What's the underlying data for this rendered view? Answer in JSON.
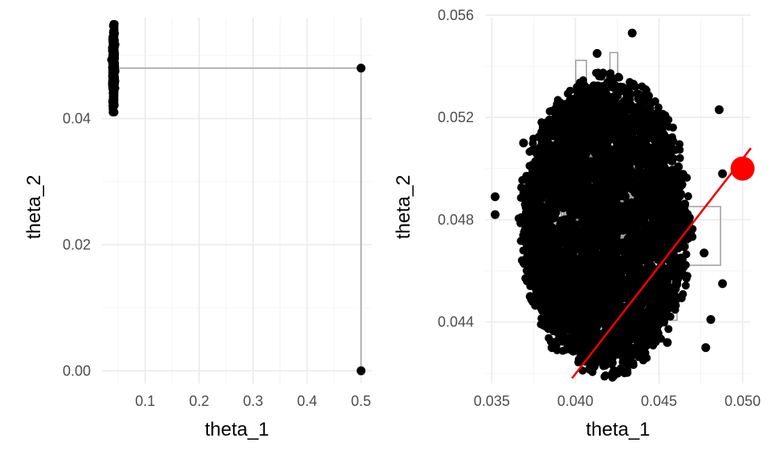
{
  "chart_data": [
    {
      "type": "scatter",
      "panel": "left",
      "xlabel": "theta_1",
      "ylabel": "theta_2",
      "xlim": [
        0.02,
        0.52
      ],
      "ylim": [
        -0.002,
        0.056
      ],
      "x_ticks": [
        0.1,
        0.2,
        0.3,
        0.4,
        0.5
      ],
      "x_tick_labels": [
        "0.1",
        "0.2",
        "0.3",
        "0.4",
        "0.5"
      ],
      "y_ticks": [
        0.0,
        0.02,
        0.04
      ],
      "y_tick_labels": [
        "0.00",
        "0.02",
        "0.04"
      ],
      "grid": true,
      "cluster": {
        "x_center": 0.0415,
        "x_spread": 0.0025,
        "y_center": 0.048,
        "y_min": 0.041,
        "y_max": 0.055,
        "color": "#000000"
      },
      "points": [
        {
          "x": 0.5,
          "y": 0.048,
          "color": "#000000"
        },
        {
          "x": 0.5,
          "y": 0.0,
          "color": "#000000"
        }
      ],
      "path": [
        [
          0.5,
          0.0
        ],
        [
          0.5,
          0.048
        ],
        [
          0.0415,
          0.048
        ]
      ],
      "path_color": "#9e9e9e"
    },
    {
      "type": "scatter",
      "panel": "right",
      "xlabel": "theta_1",
      "ylabel": "theta_2",
      "xlim": [
        0.0346,
        0.0505
      ],
      "ylim": [
        0.0416,
        0.0559
      ],
      "x_ticks": [
        0.035,
        0.04,
        0.045,
        0.05
      ],
      "x_tick_labels": [
        "0.035",
        "0.040",
        "0.045",
        "0.050"
      ],
      "y_ticks": [
        0.044,
        0.048,
        0.052,
        0.056
      ],
      "y_tick_labels": [
        "0.044",
        "0.048",
        "0.052",
        "0.056"
      ],
      "grid": true,
      "cluster": {
        "x_center": 0.0418,
        "y_center": 0.0478,
        "x_radius": 0.0048,
        "y_radius": 0.0055,
        "color": "#000000"
      },
      "outliers": [
        {
          "x": 0.0352,
          "y": 0.0489
        },
        {
          "x": 0.0352,
          "y": 0.0482
        },
        {
          "x": 0.0386,
          "y": 0.043
        },
        {
          "x": 0.0413,
          "y": 0.0545
        },
        {
          "x": 0.0434,
          "y": 0.0553
        },
        {
          "x": 0.0478,
          "y": 0.043
        },
        {
          "x": 0.0486,
          "y": 0.0523
        },
        {
          "x": 0.0488,
          "y": 0.0455
        },
        {
          "x": 0.0481,
          "y": 0.0441
        },
        {
          "x": 0.0488,
          "y": 0.0498
        },
        {
          "x": 0.0369,
          "y": 0.051
        },
        {
          "x": 0.0455,
          "y": 0.0432
        },
        {
          "x": 0.0477,
          "y": 0.0467
        },
        {
          "x": 0.0373,
          "y": 0.045
        }
      ],
      "highlight": {
        "x": 0.05,
        "y": 0.05,
        "color": "#ff0000"
      },
      "line": {
        "x1": 0.0398,
        "y1": 0.0418,
        "x2": 0.0505,
        "y2": 0.0508,
        "color": "#ee0000"
      },
      "path_color": "#9e9e9e"
    }
  ]
}
